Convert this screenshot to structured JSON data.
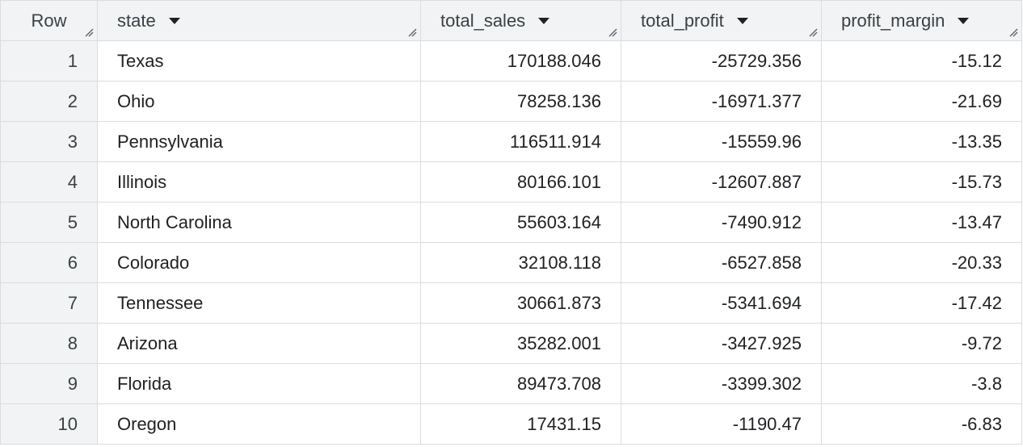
{
  "columns": {
    "row": "Row",
    "state": "state",
    "total_sales": "total_sales",
    "total_profit": "total_profit",
    "profit_margin": "profit_margin"
  },
  "rows": [
    {
      "row": "1",
      "state": "Texas",
      "total_sales": "170188.046",
      "total_profit": "-25729.356",
      "profit_margin": "-15.12"
    },
    {
      "row": "2",
      "state": "Ohio",
      "total_sales": "78258.136",
      "total_profit": "-16971.377",
      "profit_margin": "-21.69"
    },
    {
      "row": "3",
      "state": "Pennsylvania",
      "total_sales": "116511.914",
      "total_profit": "-15559.96",
      "profit_margin": "-13.35"
    },
    {
      "row": "4",
      "state": "Illinois",
      "total_sales": "80166.101",
      "total_profit": "-12607.887",
      "profit_margin": "-15.73"
    },
    {
      "row": "5",
      "state": "North Carolina",
      "total_sales": "55603.164",
      "total_profit": "-7490.912",
      "profit_margin": "-13.47"
    },
    {
      "row": "6",
      "state": "Colorado",
      "total_sales": "32108.118",
      "total_profit": "-6527.858",
      "profit_margin": "-20.33"
    },
    {
      "row": "7",
      "state": "Tennessee",
      "total_sales": "30661.873",
      "total_profit": "-5341.694",
      "profit_margin": "-17.42"
    },
    {
      "row": "8",
      "state": "Arizona",
      "total_sales": "35282.001",
      "total_profit": "-3427.925",
      "profit_margin": "-9.72"
    },
    {
      "row": "9",
      "state": "Florida",
      "total_sales": "89473.708",
      "total_profit": "-3399.302",
      "profit_margin": "-3.8"
    },
    {
      "row": "10",
      "state": "Oregon",
      "total_sales": "17431.15",
      "total_profit": "-1190.47",
      "profit_margin": "-6.83"
    }
  ],
  "icons": {
    "sort": "caret-down-icon",
    "resize": "resize-handle-icon"
  },
  "colors": {
    "header_bg": "#f1f3f4",
    "border": "#dadce0",
    "text": "#202124"
  }
}
